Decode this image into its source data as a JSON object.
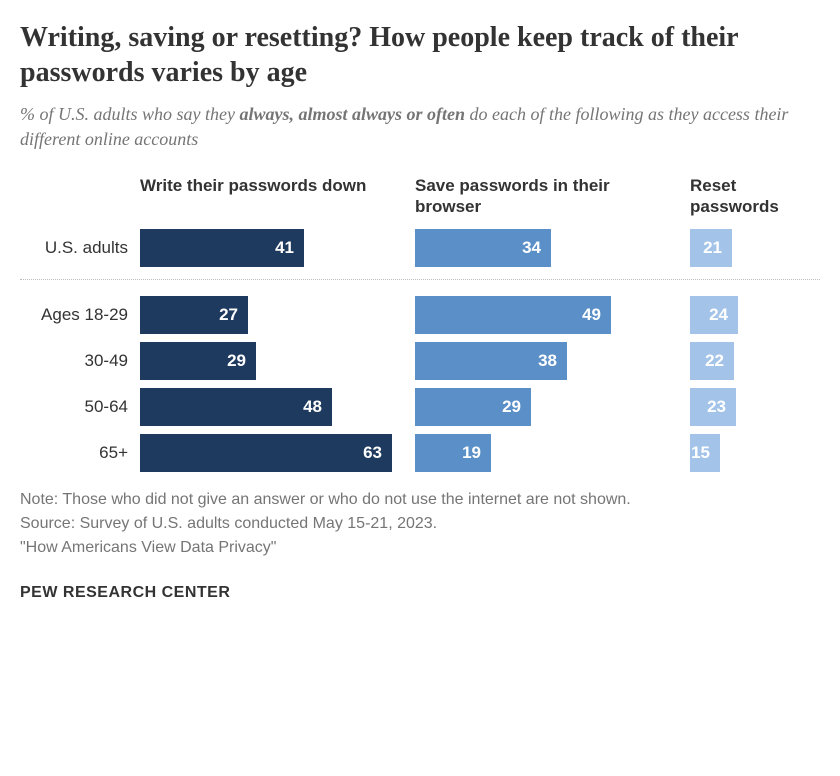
{
  "title": "Writing, saving or resetting? How people keep track of their passwords varies by age",
  "subtitle_prefix": "% of U.S. adults who say they ",
  "subtitle_bold": "always, almost always or often",
  "subtitle_suffix": " do each of the following as they access their different online accounts",
  "columns": {
    "c1": "Write their passwords down",
    "c2": "Save passwords in their browser",
    "c3": "Reset passwords"
  },
  "colors": {
    "c1": "#1f3a5f",
    "c2": "#5a8fc7",
    "c3": "#a3c4e8",
    "text_on_bar": "#ffffff",
    "background": "#ffffff"
  },
  "max_value": 65,
  "column_widths": {
    "c1": 260,
    "c2": 260,
    "c3": 130
  },
  "top_row": {
    "label": "U.S. adults",
    "c1": 41,
    "c2": 34,
    "c3": 21
  },
  "rows": [
    {
      "label": "Ages 18-29",
      "c1": 27,
      "c2": 49,
      "c3": 24
    },
    {
      "label": "30-49",
      "c1": 29,
      "c2": 38,
      "c3": 22
    },
    {
      "label": "50-64",
      "c1": 48,
      "c2": 29,
      "c3": 23
    },
    {
      "label": "65+",
      "c1": 63,
      "c2": 19,
      "c3": 15
    }
  ],
  "note_line1": "Note: Those who did not give an answer or who do not use the internet are not shown.",
  "note_line2": "Source: Survey of U.S. adults conducted May 15-21, 2023.",
  "note_line3": "\"How Americans View Data Privacy\"",
  "source_name": "PEW RESEARCH CENTER"
}
